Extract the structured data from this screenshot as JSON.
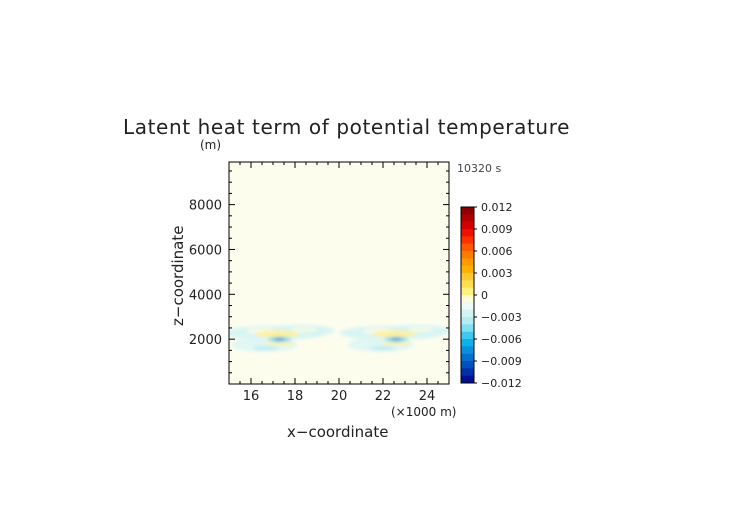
{
  "chart_data": {
    "type": "heatmap",
    "title": "Latent heat term of potential temperature",
    "time_label": "10320 s",
    "xlabel": "x−coordinate",
    "x_unit": "(×1000 m)",
    "ylabel": "z−coordinate",
    "y_unit": "(m)",
    "xlim": [
      15,
      25
    ],
    "ylim": [
      0,
      9900
    ],
    "x_ticks": [
      16,
      18,
      20,
      22,
      24
    ],
    "x_tick_labels": [
      "16",
      "18",
      "20",
      "22",
      "24"
    ],
    "y_ticks": [
      2000,
      4000,
      6000,
      8000
    ],
    "y_tick_labels": [
      "2000",
      "4000",
      "6000",
      "8000"
    ],
    "colorbar": {
      "levels": [
        0.012,
        0.009,
        0.006,
        0.003,
        0,
        -0.003,
        -0.006,
        -0.009,
        -0.012
      ],
      "labels": [
        "0.012",
        "0.009",
        "0.006",
        "0.003",
        "0",
        "−0.003",
        "−0.006",
        "−0.009",
        "−0.012"
      ],
      "range": [
        -0.012,
        0.012
      ],
      "colors_top_to_bottom": [
        "#8b0000",
        "#b00000",
        "#d40000",
        "#ee1000",
        "#ff3000",
        "#ff5a00",
        "#ff7a00",
        "#ff9a00",
        "#ffb000",
        "#ffc830",
        "#ffde50",
        "#fff080",
        "#fffbd8",
        "#eefbf4",
        "#d2f4f2",
        "#b4ecf2",
        "#80e0ef",
        "#40c8ee",
        "#10b0ec",
        "#0890e0",
        "#0070d0",
        "#0050c0",
        "#0030a8",
        "#001090"
      ]
    },
    "background_color": "#fdfdee",
    "features": [
      {
        "name": "left-cell",
        "x_range": [
          15,
          19.7
        ],
        "z_range": [
          1000,
          2600
        ],
        "min_value": -0.008,
        "max_value": 0.004
      },
      {
        "name": "right-cell",
        "x_range": [
          20.1,
          24.7
        ],
        "z_range": [
          1000,
          2600
        ],
        "min_value": -0.008,
        "max_value": 0.004
      }
    ]
  }
}
